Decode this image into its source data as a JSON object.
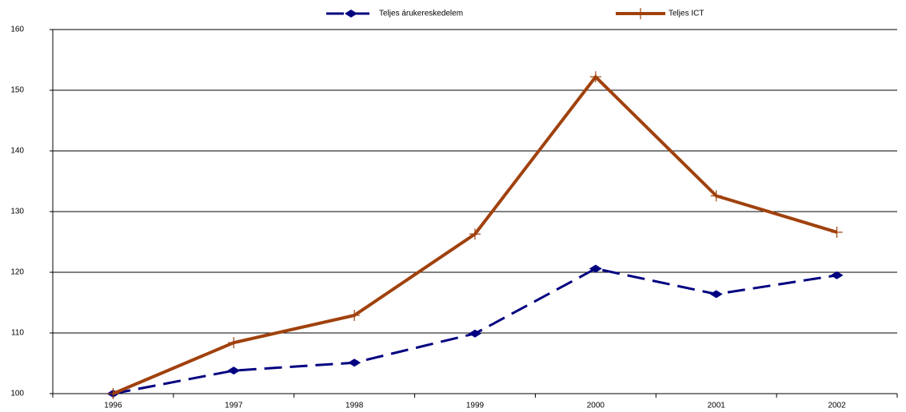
{
  "chart_data": {
    "type": "line",
    "categories": [
      "1996",
      "1997",
      "1998",
      "1999",
      "2000",
      "2001",
      "2002"
    ],
    "series": [
      {
        "name": "Teljes árukereskedelem",
        "color": "#000080",
        "dashed": true,
        "marker": "diamond",
        "values": [
          100,
          103.8,
          105.1,
          109.9,
          120.6,
          116.4,
          119.5
        ]
      },
      {
        "name": "Teljes ICT",
        "color": "#a0410d",
        "dashed": false,
        "marker": "plus",
        "values": [
          100,
          108.4,
          112.9,
          126.3,
          152.2,
          132.6,
          126.6
        ]
      }
    ],
    "ylim": [
      100,
      160
    ],
    "yticks": [
      100,
      110,
      120,
      130,
      140,
      150,
      160
    ],
    "grid": true,
    "legend": "top"
  }
}
